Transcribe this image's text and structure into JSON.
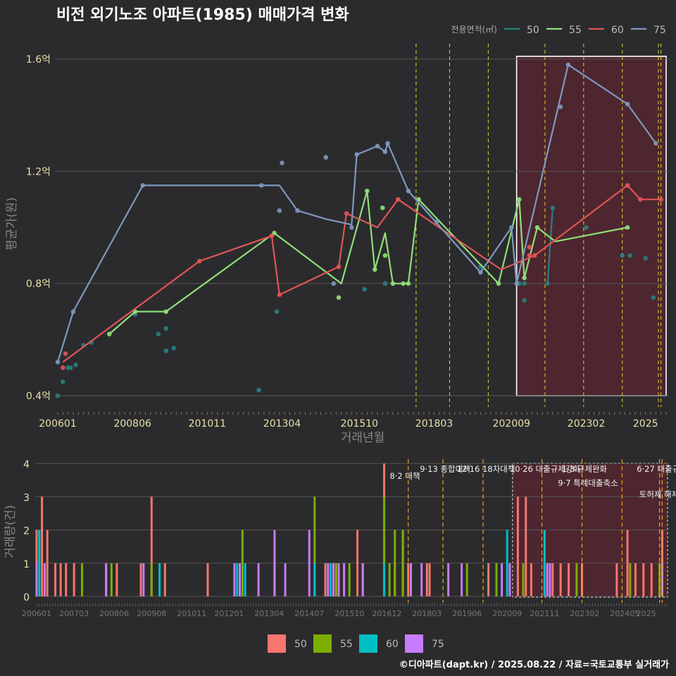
{
  "title": "비전 외기노조 아파트(1985) 매매가격 변화",
  "footer": "©디아파트(dapt.kr) / 2025.08.22 / 자료=국토교통부 실거래가",
  "colors": {
    "50": "#2a8080",
    "55": "#8fe078",
    "60": "#e05555",
    "75": "#7f98c0"
  },
  "bar_colors": {
    "50": "#f8766d",
    "55": "#7cae00",
    "60": "#00bfc4",
    "75": "#c77cff"
  },
  "chart_data": [
    {
      "type": "line",
      "title": "비전 외기노조 아파트(1985) 매매가격 변화",
      "xlabel": "거래년월",
      "ylabel": "평균가(원)",
      "x_ticks": [
        "200601",
        "200806",
        "201011",
        "201304",
        "201510",
        "201803",
        "202009",
        "202302",
        "2025"
      ],
      "y_ticks": [
        "0.4억",
        "0.8억",
        "1.2억",
        "1.6억"
      ],
      "ylim": [
        0.4,
        1.6
      ],
      "legend_title": "전용면적(㎡)",
      "legend": [
        "50",
        "55",
        "60",
        "75"
      ],
      "legend_position": "top-right",
      "highlight_range": [
        "2020-11",
        "2025-09"
      ],
      "events": [
        "2017-08",
        "2018-09",
        "2019-12",
        "2021-10",
        "2023-01",
        "2024-04",
        "2025-06",
        "2025-07"
      ],
      "series": [
        {
          "name": "50",
          "line": [
            [
              "2021-11",
              0.8
            ],
            [
              "2022-01",
              1.07
            ]
          ],
          "points": [
            [
              "2006-01",
              0.4
            ],
            [
              "2006-03",
              0.45
            ],
            [
              "2006-05",
              0.5
            ],
            [
              "2006-06",
              0.5
            ],
            [
              "2006-08",
              0.51
            ],
            [
              "2006-11",
              0.58
            ],
            [
              "2007-02",
              0.59
            ],
            [
              "2008-07",
              0.69
            ],
            [
              "2009-04",
              0.62
            ],
            [
              "2009-07",
              0.56
            ],
            [
              "2009-07",
              0.64
            ],
            [
              "2009-10",
              0.57
            ],
            [
              "2012-07",
              0.42
            ],
            [
              "2013-02",
              0.7
            ],
            [
              "2015-12",
              0.78
            ],
            [
              "2016-08",
              0.8
            ],
            [
              "2019-09",
              0.86
            ],
            [
              "2020-12",
              0.8
            ],
            [
              "2021-02",
              0.74
            ],
            [
              "2021-02",
              0.8
            ],
            [
              "2021-11",
              0.8
            ],
            [
              "2022-01",
              1.07
            ],
            [
              "2023-02",
              1.0
            ],
            [
              "2024-04",
              0.9
            ],
            [
              "2024-07",
              0.9
            ],
            [
              "2025-01",
              0.89
            ],
            [
              "2025-04",
              0.75
            ]
          ]
        },
        {
          "name": "55",
          "line": [
            [
              "2007-09",
              0.62
            ],
            [
              "2008-07",
              0.7
            ],
            [
              "2009-07",
              0.7
            ],
            [
              "2013-01",
              0.98
            ],
            [
              "2015-03",
              0.8
            ],
            [
              "2016-01",
              1.13
            ],
            [
              "2016-04",
              0.85
            ],
            [
              "2016-08",
              0.98
            ],
            [
              "2016-11",
              0.8
            ],
            [
              "2017-03",
              0.8
            ],
            [
              "2017-05",
              0.8
            ],
            [
              "2017-09",
              1.1
            ],
            [
              "2020-04",
              0.8
            ],
            [
              "2020-12",
              1.1
            ],
            [
              "2021-02",
              0.82
            ],
            [
              "2021-07",
              1.0
            ],
            [
              "2022-02",
              0.95
            ],
            [
              "2024-06",
              1.0
            ]
          ],
          "points": [
            [
              "2007-09",
              0.62
            ],
            [
              "2008-07",
              0.7
            ],
            [
              "2009-07",
              0.7
            ],
            [
              "2013-01",
              0.98
            ],
            [
              "2015-02",
              0.75
            ],
            [
              "2016-01",
              1.13
            ],
            [
              "2016-04",
              0.85
            ],
            [
              "2016-07",
              1.07
            ],
            [
              "2016-08",
              0.9
            ],
            [
              "2016-11",
              0.8
            ],
            [
              "2017-03",
              0.8
            ],
            [
              "2017-05",
              0.8
            ],
            [
              "2017-09",
              1.1
            ],
            [
              "2020-04",
              0.8
            ],
            [
              "2020-12",
              1.1
            ],
            [
              "2021-02",
              0.82
            ],
            [
              "2021-07",
              1.0
            ],
            [
              "2024-06",
              1.0
            ]
          ]
        },
        {
          "name": "60",
          "line": [
            [
              "2006-03",
              0.52
            ],
            [
              "2010-08",
              0.88
            ],
            [
              "2012-12",
              0.97
            ],
            [
              "2013-03",
              0.76
            ],
            [
              "2015-02",
              0.86
            ],
            [
              "2015-05",
              1.05
            ],
            [
              "2016-05",
              1.0
            ],
            [
              "2017-01",
              1.1
            ],
            [
              "2020-05",
              0.85
            ],
            [
              "2021-06",
              0.9
            ],
            [
              "2024-06",
              1.15
            ],
            [
              "2024-11",
              1.1
            ],
            [
              "2025-07",
              1.1
            ]
          ],
          "points": [
            [
              "2006-03",
              0.5
            ],
            [
              "2006-04",
              0.55
            ],
            [
              "2010-08",
              0.88
            ],
            [
              "2012-12",
              0.97
            ],
            [
              "2013-03",
              0.76
            ],
            [
              "2015-02",
              0.86
            ],
            [
              "2015-05",
              1.05
            ],
            [
              "2017-01",
              1.1
            ],
            [
              "2021-04",
              0.93
            ],
            [
              "2021-04",
              0.9
            ],
            [
              "2021-06",
              0.9
            ],
            [
              "2024-06",
              1.15
            ],
            [
              "2024-11",
              1.1
            ],
            [
              "2025-07",
              1.1
            ]
          ]
        },
        {
          "name": "75",
          "line": [
            [
              "2006-01",
              0.52
            ],
            [
              "2006-07",
              0.7
            ],
            [
              "2008-10",
              1.15
            ],
            [
              "2012-08",
              1.15
            ],
            [
              "2013-03",
              1.15
            ],
            [
              "2013-10",
              1.06
            ],
            [
              "2014-09",
              1.03
            ],
            [
              "2015-07",
              1.01
            ],
            [
              "2015-09",
              1.26
            ],
            [
              "2016-05",
              1.29
            ],
            [
              "2016-08",
              1.27
            ],
            [
              "2016-09",
              1.3
            ],
            [
              "2017-05",
              1.13
            ],
            [
              "2019-09",
              0.84
            ],
            [
              "2020-09",
              1.0
            ],
            [
              "2020-11",
              0.8
            ],
            [
              "2022-07",
              1.58
            ],
            [
              "2024-06",
              1.44
            ],
            [
              "2025-05",
              1.3
            ]
          ],
          "points": [
            [
              "2006-01",
              0.52
            ],
            [
              "2006-07",
              0.7
            ],
            [
              "2008-10",
              1.15
            ],
            [
              "2012-08",
              1.15
            ],
            [
              "2013-03",
              1.06
            ],
            [
              "2013-04",
              1.23
            ],
            [
              "2013-10",
              1.06
            ],
            [
              "2014-09",
              1.25
            ],
            [
              "2014-12",
              0.8
            ],
            [
              "2015-07",
              1.0
            ],
            [
              "2015-09",
              1.26
            ],
            [
              "2016-05",
              1.29
            ],
            [
              "2016-08",
              1.27
            ],
            [
              "2016-09",
              1.3
            ],
            [
              "2017-05",
              1.13
            ],
            [
              "2018-04",
              1.02
            ],
            [
              "2019-09",
              0.84
            ],
            [
              "2020-09",
              1.0
            ],
            [
              "2020-11",
              0.8
            ],
            [
              "2022-07",
              1.58
            ],
            [
              "2022-04",
              1.43
            ],
            [
              "2024-06",
              1.44
            ],
            [
              "2025-05",
              1.3
            ]
          ]
        }
      ]
    },
    {
      "type": "bar",
      "ylabel": "거래량(건)",
      "x_ticks": [
        "200601",
        "200703",
        "200806",
        "200908",
        "201011",
        "201201",
        "201304",
        "201407",
        "201510",
        "201612",
        "201803",
        "201906",
        "202009",
        "202111",
        "202302",
        "202405",
        "2025"
      ],
      "y_ticks": [
        "0",
        "1",
        "2",
        "3",
        "4"
      ],
      "ylim": [
        0,
        4
      ],
      "legend": [
        "50",
        "55",
        "60",
        "75"
      ],
      "legend_position": "bottom",
      "highlight_range": [
        "2020-11",
        "2025-09"
      ],
      "annotations": [
        {
          "date": "2017-08",
          "label": "8·2 대책"
        },
        {
          "date": "2018-09",
          "label": "9·13 종합대책"
        },
        {
          "date": "2019-12",
          "label": "12·16 18차대책"
        },
        {
          "date": "2021-10",
          "label": "10·26 대출규제강화"
        },
        {
          "date": "2023-01",
          "label": "1·3 규제완화"
        },
        {
          "date": "2024-04",
          "label": "9·7 특례대출축소"
        },
        {
          "date": "2025-06",
          "label": "6·27 대출규제"
        },
        {
          "date": "2025-07",
          "label": "토허제 해제"
        }
      ],
      "series": [
        {
          "name": "50",
          "bars": [
            [
              "2006-01",
              2
            ],
            [
              "2006-03",
              3
            ],
            [
              "2006-05",
              2
            ],
            [
              "2006-08",
              1
            ],
            [
              "2006-10",
              1
            ],
            [
              "2006-12",
              1
            ],
            [
              "2007-03",
              1
            ],
            [
              "2008-03",
              1
            ],
            [
              "2008-07",
              1
            ],
            [
              "2009-04",
              1
            ],
            [
              "2009-08",
              3
            ],
            [
              "2010-01",
              1
            ],
            [
              "2011-05",
              1
            ],
            [
              "2013-06",
              1
            ],
            [
              "2015-01",
              1
            ],
            [
              "2015-05",
              1
            ],
            [
              "2016-01",
              2
            ],
            [
              "2016-03",
              1
            ],
            [
              "2016-11",
              4
            ],
            [
              "2017-03",
              1
            ],
            [
              "2017-06",
              2
            ],
            [
              "2017-08",
              1
            ],
            [
              "2018-03",
              1
            ],
            [
              "2018-04",
              1
            ],
            [
              "2020-02",
              1
            ],
            [
              "2021-01",
              3
            ],
            [
              "2021-04",
              3
            ],
            [
              "2021-06",
              1
            ],
            [
              "2022-02",
              1
            ],
            [
              "2022-05",
              1
            ],
            [
              "2022-08",
              1
            ],
            [
              "2023-01",
              1
            ],
            [
              "2024-02",
              1
            ],
            [
              "2024-06",
              2
            ],
            [
              "2024-09",
              1
            ],
            [
              "2024-12",
              1
            ],
            [
              "2025-03",
              1
            ],
            [
              "2025-07",
              2
            ]
          ]
        },
        {
          "name": "55",
          "bars": [
            [
              "2007-06",
              1
            ],
            [
              "2008-05",
              1
            ],
            [
              "2009-08",
              1
            ],
            [
              "2012-06",
              2
            ],
            [
              "2014-09",
              3
            ],
            [
              "2015-05",
              1
            ],
            [
              "2015-10",
              1
            ],
            [
              "2016-11",
              3
            ],
            [
              "2017-01",
              1
            ],
            [
              "2017-03",
              2
            ],
            [
              "2017-06",
              2
            ],
            [
              "2019-06",
              1
            ],
            [
              "2020-05",
              1
            ],
            [
              "2021-03",
              1
            ],
            [
              "2021-11",
              1
            ],
            [
              "2022-11",
              1
            ],
            [
              "2024-07",
              1
            ],
            [
              "2025-06",
              1
            ]
          ]
        },
        {
          "name": "60",
          "bars": [
            [
              "2006-02",
              2
            ],
            [
              "2009-11",
              1
            ],
            [
              "2012-04",
              1
            ],
            [
              "2012-07",
              1
            ],
            [
              "2014-09",
              1
            ],
            [
              "2015-03",
              1
            ],
            [
              "2016-11",
              1
            ],
            [
              "2020-09",
              2
            ],
            [
              "2021-11",
              2
            ]
          ]
        },
        {
          "name": "75",
          "bars": [
            [
              "2006-01",
              1
            ],
            [
              "2006-04",
              1
            ],
            [
              "2008-03",
              1
            ],
            [
              "2009-05",
              1
            ],
            [
              "2012-03",
              1
            ],
            [
              "2012-05",
              1
            ],
            [
              "2012-12",
              1
            ],
            [
              "2013-06",
              2
            ],
            [
              "2013-10",
              1
            ],
            [
              "2014-07",
              2
            ],
            [
              "2015-02",
              1
            ],
            [
              "2015-04",
              1
            ],
            [
              "2015-06",
              1
            ],
            [
              "2015-08",
              1
            ],
            [
              "2016-03",
              1
            ],
            [
              "2017-09",
              1
            ],
            [
              "2018-01",
              1
            ],
            [
              "2018-11",
              1
            ],
            [
              "2019-04",
              1
            ],
            [
              "2020-07",
              1
            ],
            [
              "2020-10",
              1
            ],
            [
              "2021-12",
              1
            ],
            [
              "2022-01",
              1
            ],
            [
              "2025-07",
              1
            ]
          ]
        }
      ]
    }
  ]
}
